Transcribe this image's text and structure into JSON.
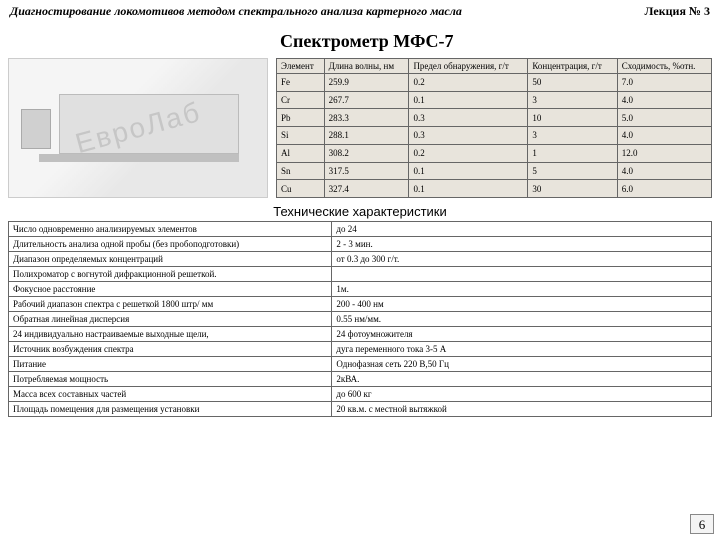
{
  "header": {
    "left": "Диагностирование локомотивов методом спектрального анализа  картерного масла",
    "right": "Лекция № 3"
  },
  "title": "Спектрометр МФС-7",
  "watermark": "ЕвроЛаб",
  "elements": {
    "columns": [
      "Элемент",
      "Длина волны, нм",
      "Предел обнаружения, г/т",
      "Концентрация, г/т",
      "Сходимость, %отн."
    ],
    "rows": [
      [
        "Fe",
        "259.9",
        "0.2",
        "50",
        "7.0"
      ],
      [
        "Cr",
        "267.7",
        "0.1",
        "3",
        "4.0"
      ],
      [
        "Pb",
        "283.3",
        "0.3",
        "10",
        "5.0"
      ],
      [
        "Si",
        "288.1",
        "0.3",
        "3",
        "4.0"
      ],
      [
        "Al",
        "308.2",
        "0.2",
        "1",
        "12.0"
      ],
      [
        "Sn",
        "317.5",
        "0.1",
        "5",
        "4.0"
      ],
      [
        "Cu",
        "327.4",
        "0.1",
        "30",
        "6.0"
      ]
    ]
  },
  "tech_title": "Технические характеристики",
  "tech": [
    [
      "Число одновременно анализируемых элементов",
      "до 24"
    ],
    [
      "Длительность анализа одной пробы (без пробоподготовки)",
      "2 - 3 мин."
    ],
    [
      "Диапазон определяемых концентраций",
      "от 0.3 до 300 г/т."
    ],
    [
      "Полихроматор с вогнутой дифракционной решеткой.",
      ""
    ],
    [
      "Фокусное расстояние",
      "1м."
    ],
    [
      "Рабочий диапазон спектра с решеткой 1800 штр/ мм",
      "200 - 400 нм"
    ],
    [
      "Обратная линейная дисперсия",
      "0.55 нм/мм."
    ],
    [
      "24 индивидуально настраиваемые выходные щели,",
      "24 фотоумножителя"
    ],
    [
      "Источник возбуждения спектра",
      "дуга переменного тока 3-5 А"
    ],
    [
      "Питание",
      "Однофазная сеть 220 В,50 Гц"
    ],
    [
      "Потребляемая мощность",
      "2кВА."
    ],
    [
      "Масса всех составных частей",
      "до 600 кг"
    ],
    [
      "Площадь помещения для размещения установки",
      "20 кв.м. с местной вытяжкой"
    ]
  ],
  "page_number": "6"
}
